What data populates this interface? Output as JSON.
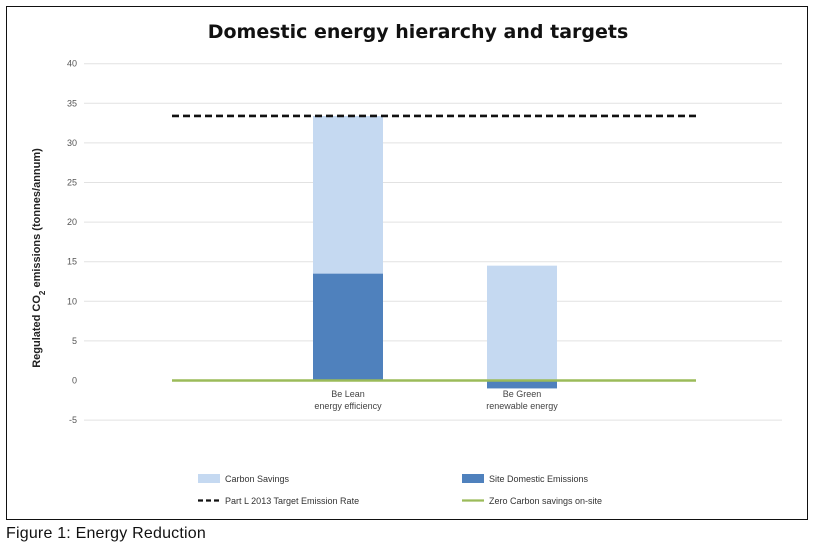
{
  "caption": "Figure 1: Energy Reduction",
  "chart_data": {
    "type": "bar",
    "stacked": true,
    "title": "Domestic energy hierarchy and targets",
    "ylabel_main": "Regulated CO",
    "ylabel_sub": "2",
    "ylabel_rest": " emissions (tonnes/annum)",
    "ylim": [
      -5,
      40
    ],
    "yticks": [
      -5,
      0,
      5,
      10,
      15,
      20,
      25,
      30,
      35,
      40
    ],
    "grid": true,
    "legend_position": "bottom",
    "categories": [
      {
        "line1": "Be Lean",
        "line2": "energy efficiency"
      },
      {
        "line1": "Be Green",
        "line2": "renewable energy"
      }
    ],
    "series": [
      {
        "name": "Site Domestic Emissions",
        "color": "#4f81bd",
        "values": [
          13.5,
          -1.0
        ]
      },
      {
        "name": "Carbon Savings",
        "color": "#c5d9f1",
        "values": [
          19.9,
          14.5
        ]
      }
    ],
    "reference_lines": [
      {
        "name": "Part L 2013 Target Emission Rate",
        "value": 33.4,
        "color": "#111111",
        "style": "dashed"
      },
      {
        "name": "Zero Carbon savings on-site",
        "value": 0,
        "color": "#9bbb59",
        "style": "solid"
      }
    ],
    "legend": [
      {
        "label": "Carbon Savings",
        "swatch": "box",
        "color": "#c5d9f1"
      },
      {
        "label": "Site Domestic Emissions",
        "swatch": "box",
        "color": "#4f81bd"
      },
      {
        "label": "Part L 2013 Target Emission Rate",
        "swatch": "dash",
        "color": "#111111"
      },
      {
        "label": "Zero Carbon savings on-site",
        "swatch": "line",
        "color": "#9bbb59"
      }
    ]
  }
}
